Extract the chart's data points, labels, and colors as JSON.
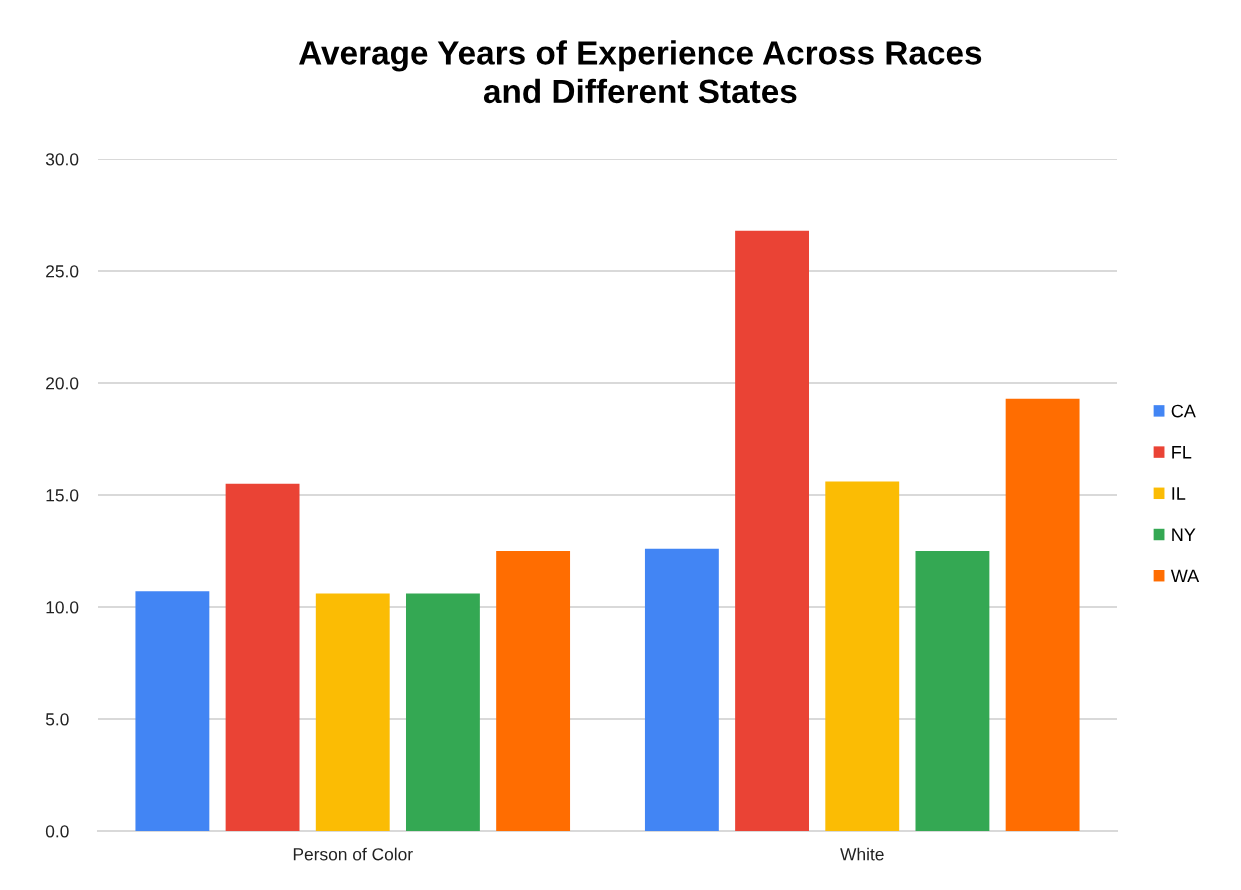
{
  "chart_data": {
    "type": "bar",
    "title": "Average Years of Experience Across Races\nand Different States",
    "categories": [
      "Person of Color",
      "White"
    ],
    "series": [
      {
        "name": "CA",
        "color": "#4285f4",
        "values": [
          10.7,
          12.6
        ]
      },
      {
        "name": "FL",
        "color": "#ea4335",
        "values": [
          15.5,
          26.8
        ]
      },
      {
        "name": "IL",
        "color": "#fbbc04",
        "values": [
          10.6,
          15.6
        ]
      },
      {
        "name": "NY",
        "color": "#34a853",
        "values": [
          10.6,
          12.5
        ]
      },
      {
        "name": "WA",
        "color": "#ff6d01",
        "values": [
          12.5,
          19.3
        ]
      }
    ],
    "ylim": [
      0,
      30
    ],
    "yticks": [
      {
        "value": 0,
        "label": "0.0"
      },
      {
        "value": 5,
        "label": "5.0"
      },
      {
        "value": 10,
        "label": "10.0"
      },
      {
        "value": 15,
        "label": "15.0"
      },
      {
        "value": 20,
        "label": "20.0"
      },
      {
        "value": 25,
        "label": "25.0"
      },
      {
        "value": 30,
        "label": "30.0"
      }
    ],
    "grid": "y",
    "legend": "right"
  }
}
